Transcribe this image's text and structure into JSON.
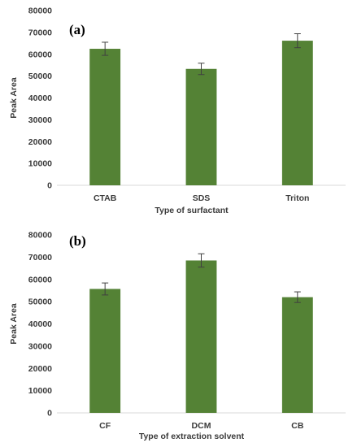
{
  "chart_data": [
    {
      "type": "bar",
      "panel_label": "(a)",
      "categories": [
        "CTAB",
        "SDS",
        "Triton"
      ],
      "values": [
        62500,
        53300,
        66200
      ],
      "errors": [
        3000,
        2600,
        3200
      ],
      "xlabel": "Type of surfactant",
      "ylabel": "Peak Area",
      "ylim": [
        0,
        80000
      ],
      "yticks": [
        "80000",
        "70000",
        "60000",
        "50000",
        "40000",
        "30000",
        "20000",
        "10000",
        "0"
      ],
      "grid": false,
      "bar_color": "#548235",
      "error_color": "#404040"
    },
    {
      "type": "bar",
      "panel_label": "(b)",
      "categories": [
        "CF",
        "DCM",
        "CB"
      ],
      "values": [
        55700,
        68500,
        52000
      ],
      "errors": [
        2700,
        3000,
        2400
      ],
      "xlabel": "Type of extraction solvent",
      "ylabel": "Peak Area",
      "ylim": [
        0,
        80000
      ],
      "yticks": [
        "80000",
        "70000",
        "60000",
        "50000",
        "40000",
        "30000",
        "20000",
        "10000",
        "0"
      ],
      "grid": false,
      "bar_color": "#548235",
      "error_color": "#404040"
    }
  ]
}
